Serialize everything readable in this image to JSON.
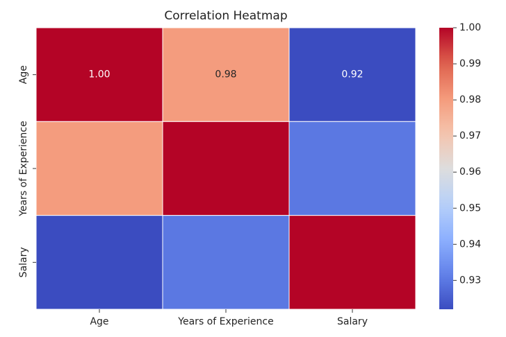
{
  "chart_data": {
    "type": "heatmap",
    "title": "Correlation Heatmap",
    "xlabel": "",
    "ylabel": "",
    "x_categories": [
      "Age",
      "Years of Experience",
      "Salary"
    ],
    "y_categories": [
      "Age",
      "Years of Experience",
      "Salary"
    ],
    "matrix": [
      [
        1.0,
        0.98,
        0.92
      ],
      [
        0.98,
        1.0,
        0.93
      ],
      [
        0.92,
        0.93,
        1.0
      ]
    ],
    "annotations": [
      [
        "1.00",
        "0.98",
        "0.92"
      ],
      [
        "",
        "",
        ""
      ],
      [
        "",
        "",
        ""
      ]
    ],
    "colormap": "coolwarm",
    "vmin": 0.922,
    "vmax": 1.0,
    "cell_border_color": "#ffffff",
    "colorbar": {
      "ticks": [
        "1.00",
        "0.99",
        "0.98",
        "0.97",
        "0.96",
        "0.95",
        "0.94",
        "0.93"
      ],
      "tick_values": [
        1.0,
        0.99,
        0.98,
        0.97,
        0.96,
        0.95,
        0.94,
        0.93
      ],
      "placement": "right"
    }
  }
}
